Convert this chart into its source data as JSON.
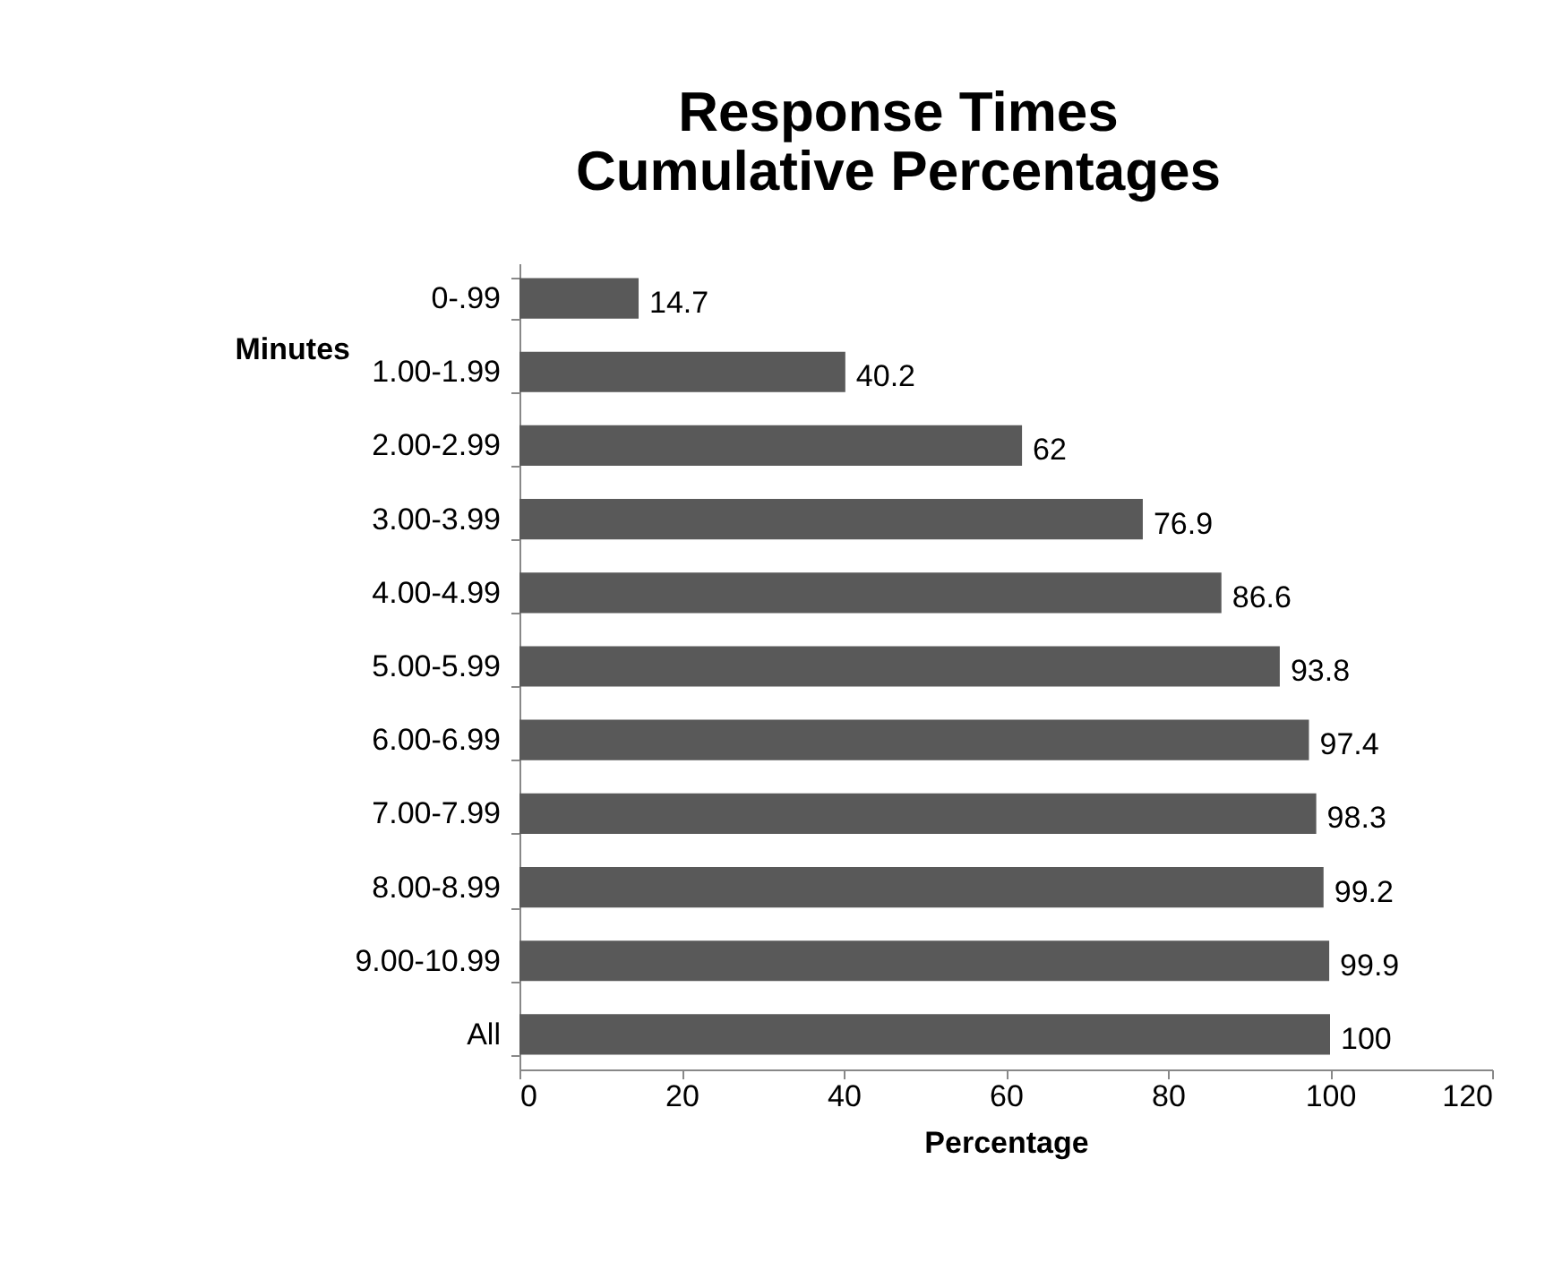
{
  "chart_data": {
    "type": "bar",
    "orientation": "horizontal",
    "title": "Response Times\nCumulative Percentages",
    "categories": [
      "0-.99",
      "1.00-1.99",
      "2.00-2.99",
      "3.00-3.99",
      "4.00-4.99",
      "5.00-5.99",
      "6.00-6.99",
      "7.00-7.99",
      "8.00-8.99",
      "9.00-10.99",
      "All"
    ],
    "values": [
      14.7,
      40.2,
      62,
      76.9,
      86.6,
      93.8,
      97.4,
      98.3,
      99.2,
      99.9,
      100
    ],
    "color": "#595959",
    "xlim": [
      0,
      120
    ],
    "xticks": [
      0,
      20,
      40,
      60,
      80,
      100,
      120
    ],
    "xlabel": "Percentage",
    "ylabel": "Minutes",
    "data_labels": true,
    "grid": false
  }
}
